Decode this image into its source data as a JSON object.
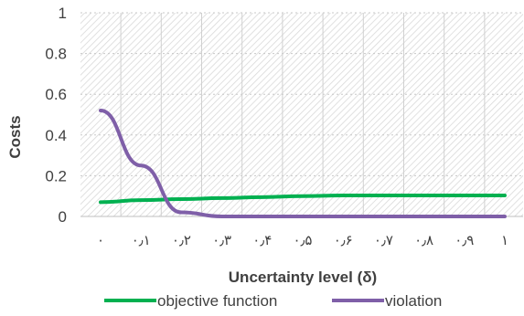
{
  "chart_data": {
    "type": "line",
    "x": [
      0,
      0.1,
      0.2,
      0.3,
      0.4,
      0.5,
      0.6,
      0.7,
      0.8,
      0.9,
      1
    ],
    "x_tick_labels": [
      "۰",
      "۰٫۱",
      "۰٫۲",
      "۰٫۳",
      "۰٫۴",
      "۰٫۵",
      "۰٫۶",
      "۰٫۷",
      "۰٫۸",
      "۰٫۹",
      "۱"
    ],
    "y_tick_labels": [
      "0",
      "0.2",
      "0.4",
      "0.6",
      "0.8",
      "1"
    ],
    "ylim": [
      0,
      1
    ],
    "xlabel": "Uncertainty level (δ)",
    "ylabel": "Costs",
    "grid": "horizontal dotted, hatched plot background",
    "legend": "bottom",
    "series": [
      {
        "name": "objective function",
        "color": "#00b050",
        "values": [
          0.07,
          0.08,
          0.085,
          0.09,
          0.095,
          0.1,
          0.103,
          0.103,
          0.103,
          0.103,
          0.103
        ]
      },
      {
        "name": "violation",
        "color": "#7f5fa8",
        "values": [
          0.52,
          0.25,
          0.02,
          0.0,
          0.0,
          0.0,
          0.0,
          0.0,
          0.0,
          0.0,
          0.0
        ]
      }
    ]
  }
}
